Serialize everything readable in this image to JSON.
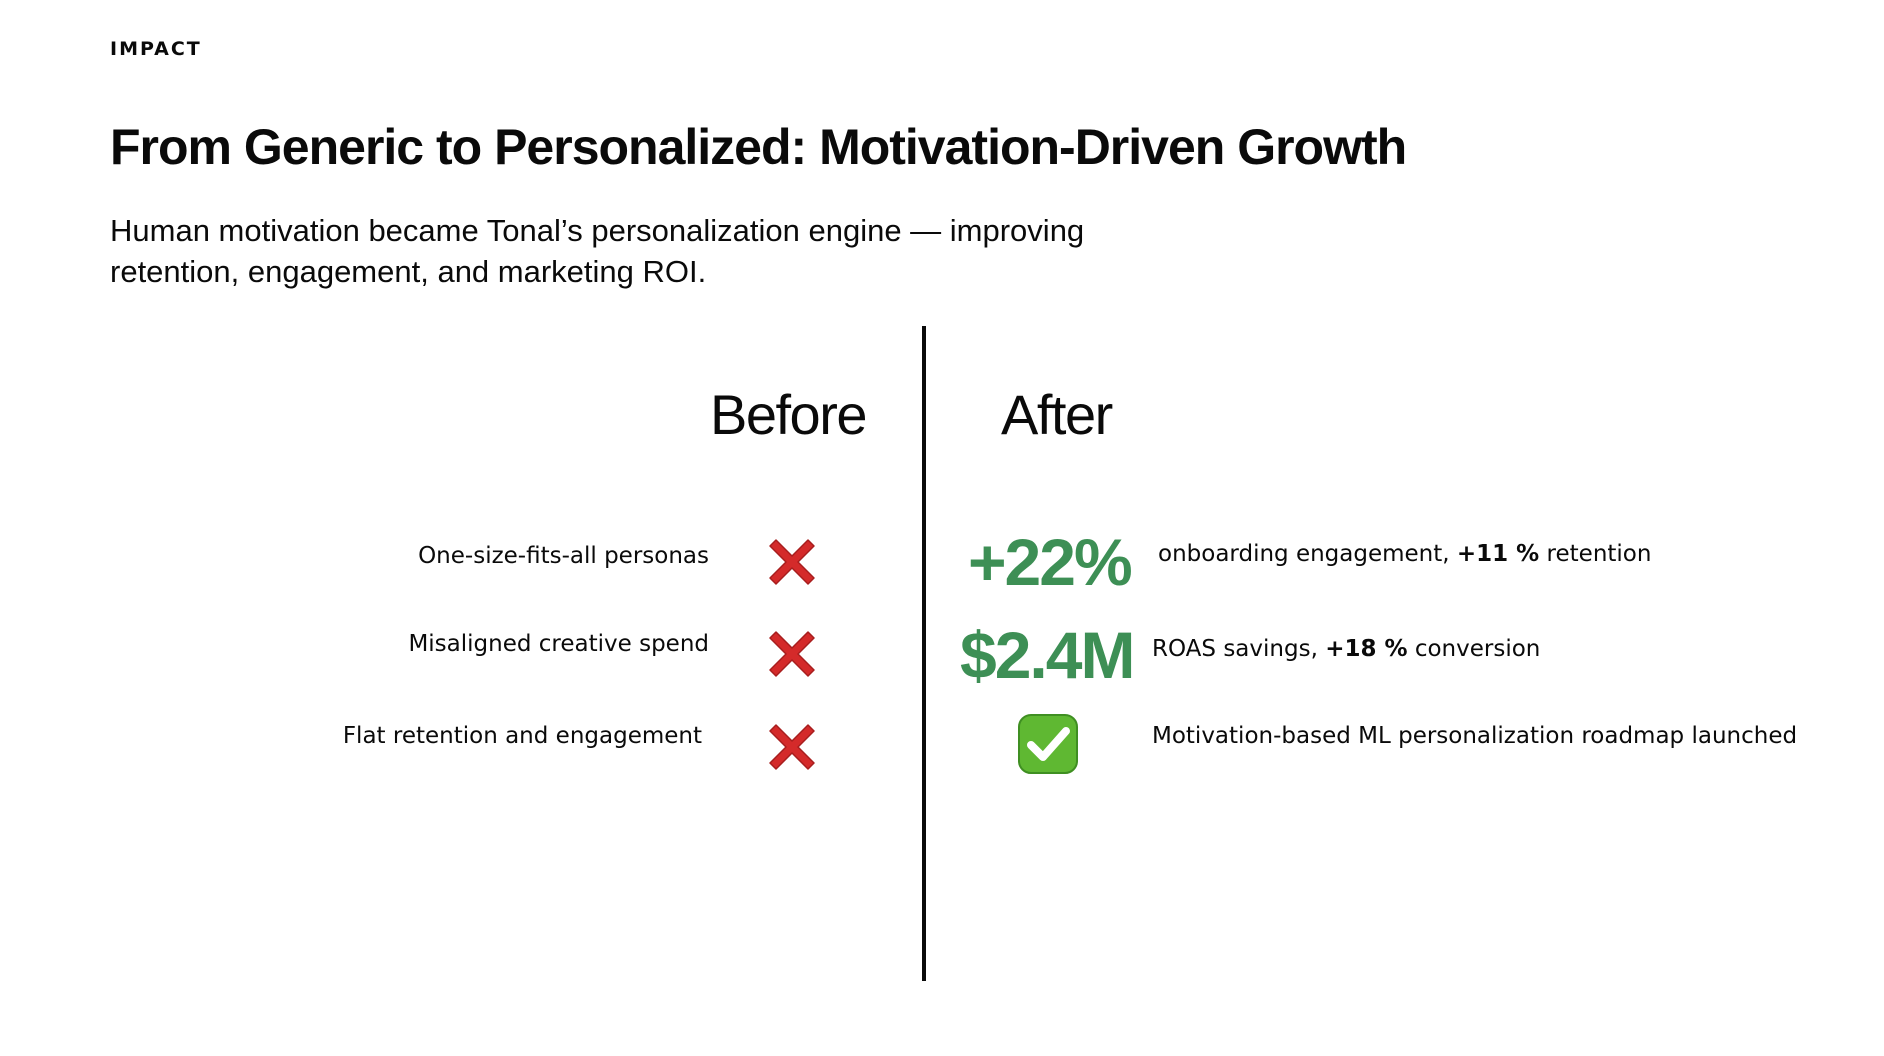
{
  "eyebrow": "IMPACT",
  "title": "From Generic to Personalized: Motivation-Driven Growth",
  "subtitle": "Human motivation became Tonal’s personalization engine — improving retention, engagement, and marketing ROI.",
  "before": {
    "heading": "Before",
    "items": [
      {
        "label": "One-size-fits-all personas",
        "icon": "cross-mark-icon"
      },
      {
        "label": "Misaligned creative spend",
        "icon": "cross-mark-icon"
      },
      {
        "label": "Flat retention and engagement",
        "icon": "cross-mark-icon"
      }
    ]
  },
  "after": {
    "heading": "After",
    "items": [
      {
        "stat": "+22%",
        "text": "onboarding engagement,",
        "bold": "+11 %",
        "tail": "retention"
      },
      {
        "stat": "$2.4M",
        "text": "ROAS savings,",
        "bold": "+18 %",
        "tail": "conversion"
      },
      {
        "icon": "check-mark-button-icon",
        "text": "Motivation-based ML personalization roadmap launched"
      }
    ]
  },
  "colors": {
    "accent_green": "#3d8f55",
    "cross_red": "#d42a2a",
    "check_green": "#5fb832"
  }
}
